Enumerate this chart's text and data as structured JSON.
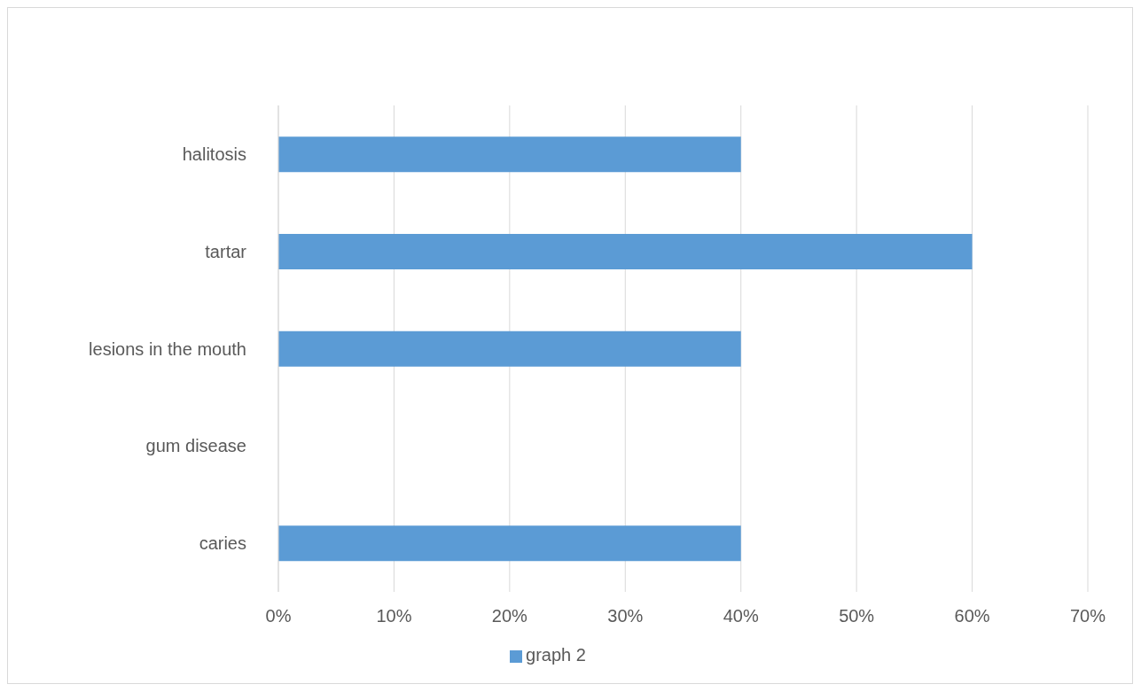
{
  "chart_data": {
    "type": "bar",
    "orientation": "horizontal",
    "categories": [
      "halitosis",
      "tartar",
      "lesions in the mouth",
      "gum disease",
      "caries"
    ],
    "series": [
      {
        "name": "graph 2",
        "color": "#5b9bd5",
        "values": [
          40,
          60,
          40,
          0,
          40
        ]
      }
    ],
    "xlim": [
      0,
      70
    ],
    "xticks": [
      {
        "value": 0,
        "label": "0%"
      },
      {
        "value": 10,
        "label": "10%"
      },
      {
        "value": 20,
        "label": "20%"
      },
      {
        "value": 30,
        "label": "30%"
      },
      {
        "value": 40,
        "label": "40%"
      },
      {
        "value": 50,
        "label": "50%"
      },
      {
        "value": 60,
        "label": "60%"
      },
      {
        "value": 70,
        "label": "70%"
      }
    ],
    "grid": "x",
    "legend": "bottom"
  }
}
